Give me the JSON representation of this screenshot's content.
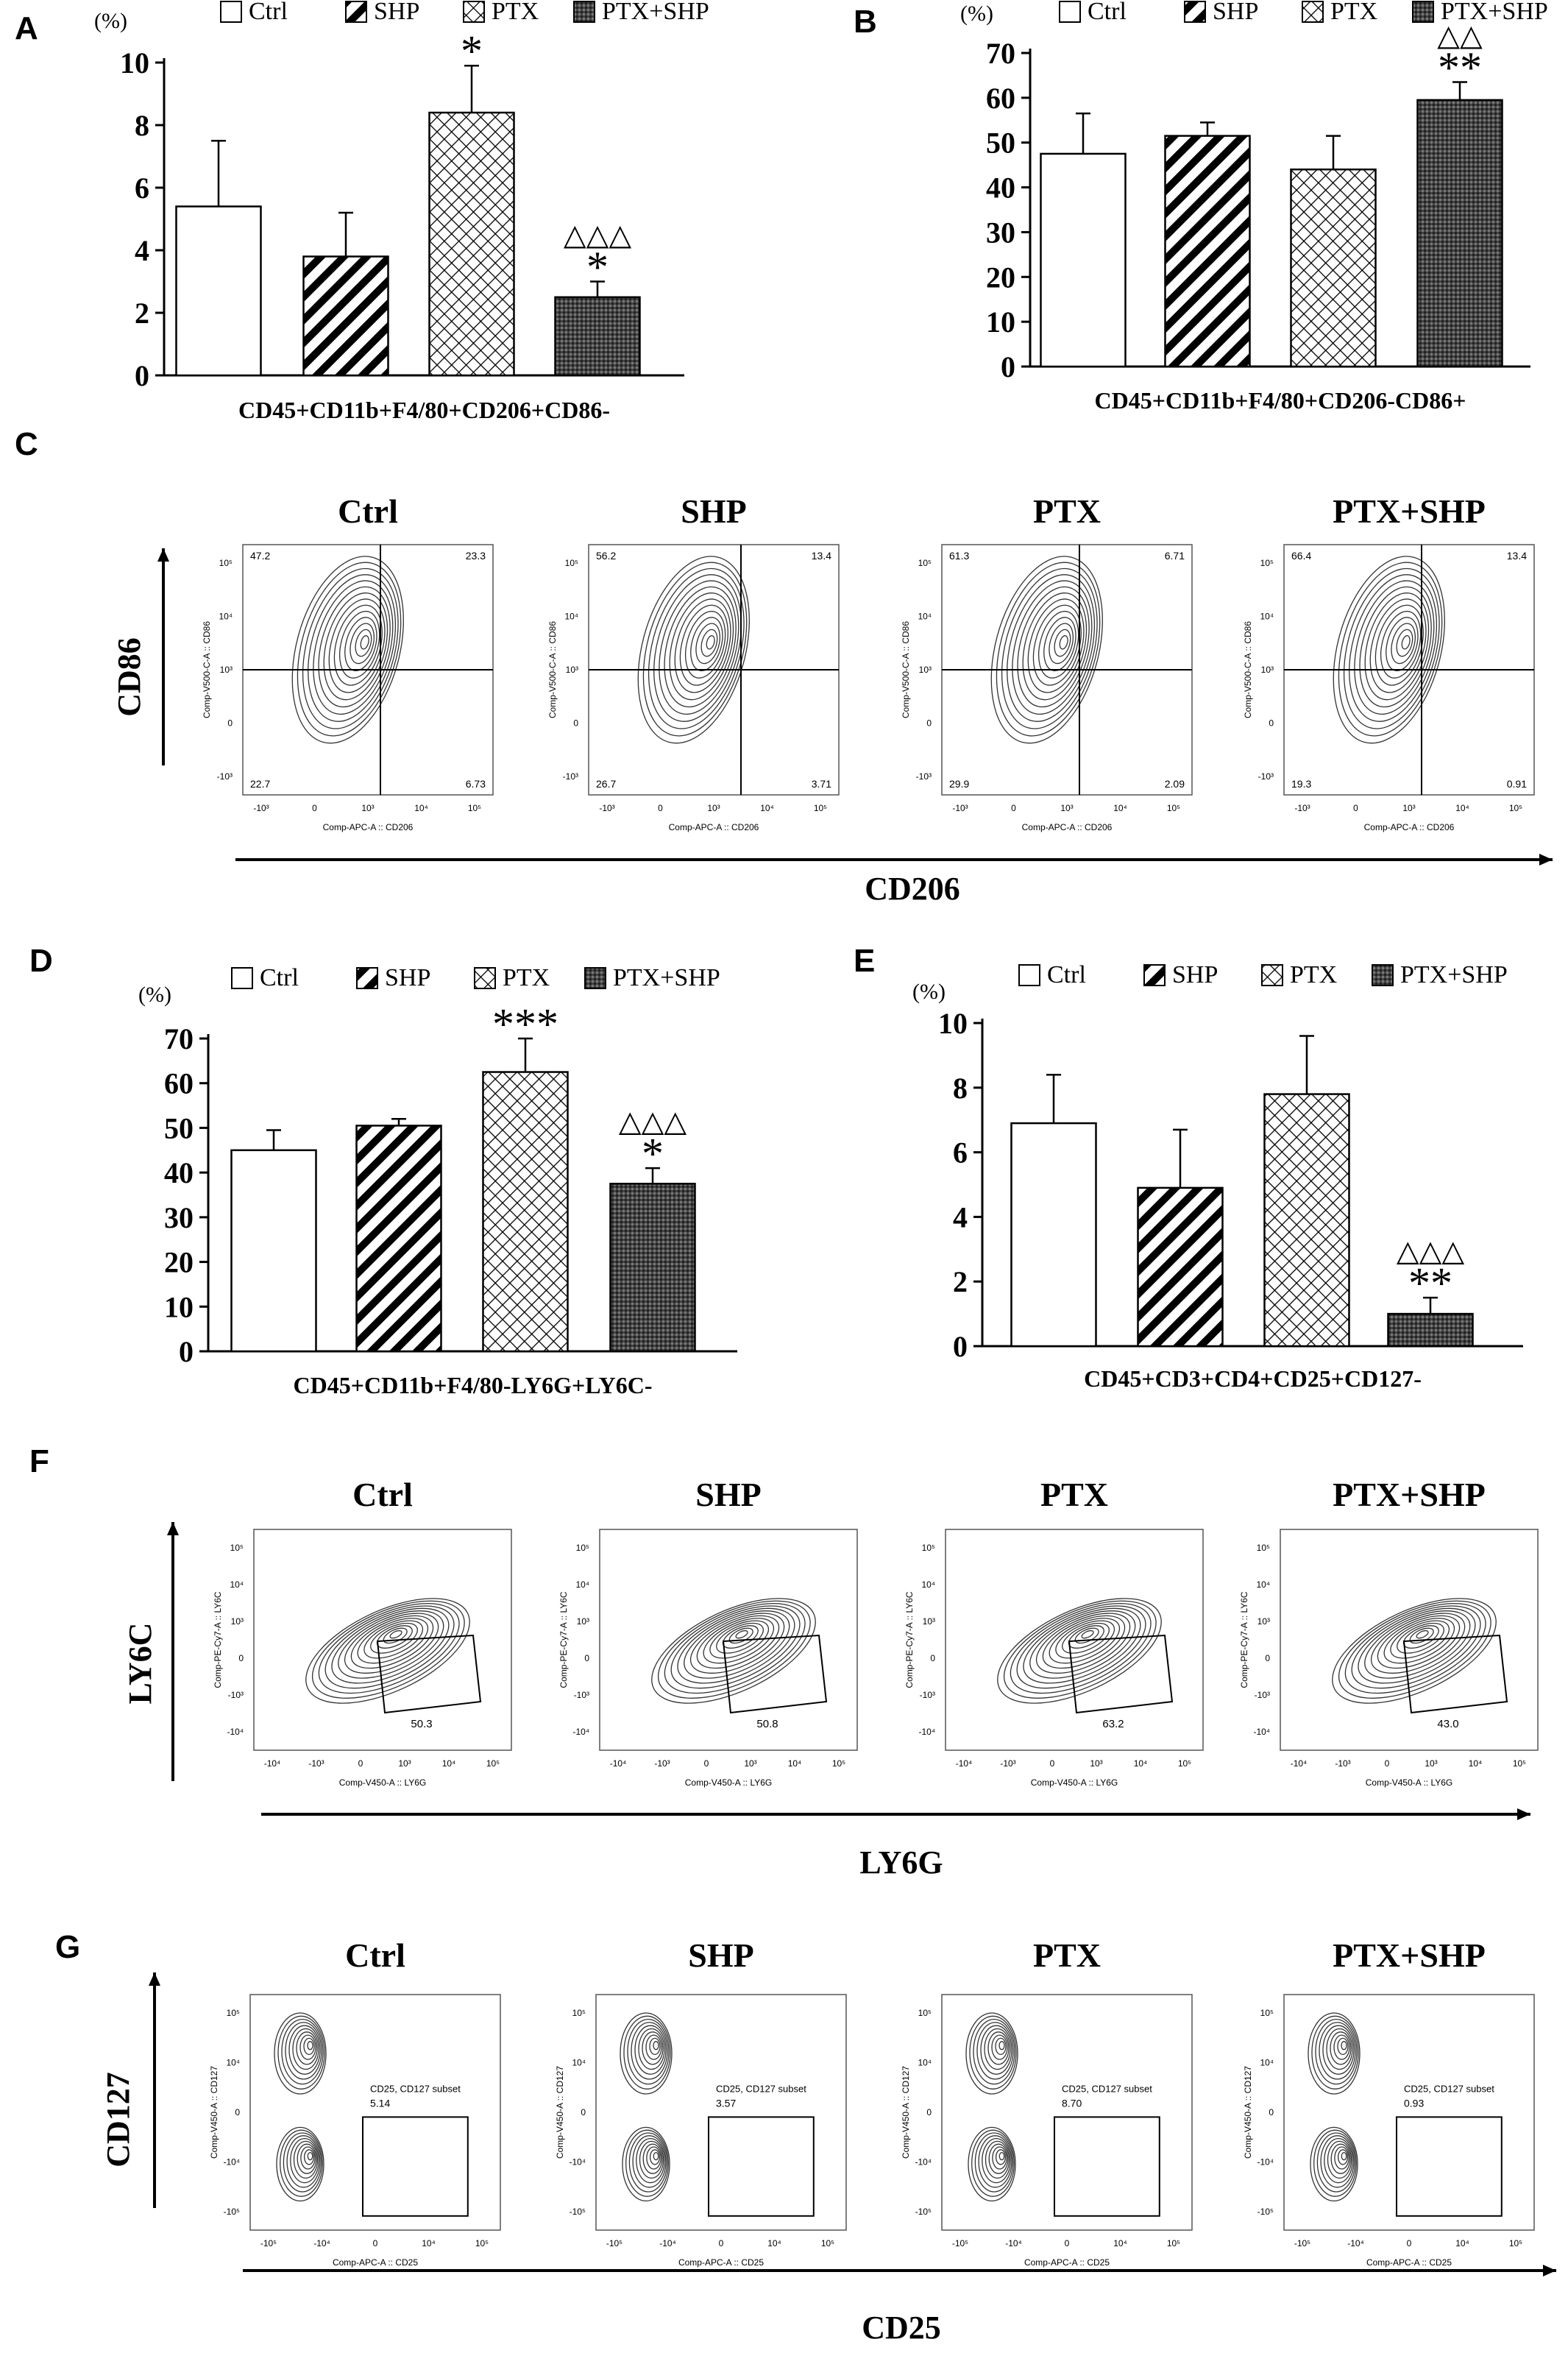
{
  "legend": [
    "Ctrl",
    "SHP",
    "PTX",
    "PTX+SHP"
  ],
  "palette": {
    "ink": "#000000",
    "contour": "#333333",
    "bg": "#ffffff",
    "crosshatch_fill": "#444444"
  },
  "chart_data": [
    {
      "panel": "A",
      "type": "bar",
      "categories": [
        "Ctrl",
        "SHP",
        "PTX",
        "PTX+SHP"
      ],
      "values": [
        5.4,
        3.8,
        8.4,
        2.5
      ],
      "errors": [
        2.1,
        1.4,
        1.5,
        0.5
      ],
      "annotations": [
        [
          "",
          ""
        ],
        [
          "",
          ""
        ],
        [
          "",
          "*"
        ],
        [
          "△△△",
          "*"
        ]
      ],
      "ylim": [
        0,
        10
      ],
      "yticks": [
        0,
        2,
        4,
        6,
        8,
        10
      ],
      "yunit": "(%)",
      "xlabel": "CD45+CD11b+F4/80+CD206+CD86-"
    },
    {
      "panel": "B",
      "type": "bar",
      "categories": [
        "Ctrl",
        "SHP",
        "PTX",
        "PTX+SHP"
      ],
      "values": [
        47.5,
        51.5,
        44,
        59.5
      ],
      "errors": [
        9,
        3,
        7.5,
        4
      ],
      "annotations": [
        [
          "",
          ""
        ],
        [
          "",
          ""
        ],
        [
          "",
          ""
        ],
        [
          "△△",
          "**"
        ]
      ],
      "ylim": [
        0,
        70
      ],
      "yticks": [
        0,
        10,
        20,
        30,
        40,
        50,
        60,
        70
      ],
      "yunit": "(%)",
      "xlabel": "CD45+CD11b+F4/80+CD206-CD86+"
    },
    {
      "panel": "D",
      "type": "bar",
      "categories": [
        "Ctrl",
        "SHP",
        "PTX",
        "PTX+SHP"
      ],
      "values": [
        45,
        50.5,
        62.5,
        37.5
      ],
      "errors": [
        4.5,
        1.5,
        7.5,
        3.5
      ],
      "annotations": [
        [
          "",
          ""
        ],
        [
          "",
          ""
        ],
        [
          "",
          "***"
        ],
        [
          "△△△",
          "*"
        ]
      ],
      "ylim": [
        0,
        70
      ],
      "yticks": [
        0,
        10,
        20,
        30,
        40,
        50,
        60,
        70
      ],
      "yunit": "(%)",
      "xlabel": "CD45+CD11b+F4/80-LY6G+LY6C-"
    },
    {
      "panel": "E",
      "type": "bar",
      "categories": [
        "Ctrl",
        "SHP",
        "PTX",
        "PTX+SHP"
      ],
      "values": [
        6.9,
        4.9,
        7.8,
        1.0
      ],
      "errors": [
        1.5,
        1.8,
        1.8,
        0.5
      ],
      "annotations": [
        [
          "",
          ""
        ],
        [
          "",
          ""
        ],
        [
          "",
          ""
        ],
        [
          "△△△",
          "**"
        ]
      ],
      "ylim": [
        0,
        10
      ],
      "yticks": [
        0,
        2,
        4,
        6,
        8,
        10
      ],
      "yunit": "(%)",
      "xlabel": "CD45+CD3+CD4+CD25+CD127-"
    }
  ],
  "flow_panels": [
    {
      "panel": "C",
      "y_axis": "CD86",
      "x_axis": "CD206",
      "y_param": "Comp-V500-C-A :: CD86",
      "x_param": "Comp-APC-A :: CD206",
      "plots": [
        {
          "title": "Ctrl",
          "q": [
            "47.2",
            "23.3",
            "22.7",
            "6.73"
          ]
        },
        {
          "title": "SHP",
          "q": [
            "56.2",
            "13.4",
            "26.7",
            "3.71"
          ]
        },
        {
          "title": "PTX",
          "q": [
            "61.3",
            "6.71",
            "29.9",
            "2.09"
          ]
        },
        {
          "title": "PTX+SHP",
          "q": [
            "66.4",
            "13.4",
            "19.3",
            "0.91"
          ]
        }
      ]
    },
    {
      "panel": "F",
      "y_axis": "LY6C",
      "x_axis": "LY6G",
      "y_param": "Comp-PE-Cy7-A :: LY6C",
      "x_param": "Comp-V450-A :: LY6G",
      "plots": [
        {
          "title": "Ctrl",
          "gate_value": "50.3"
        },
        {
          "title": "SHP",
          "gate_value": "50.8"
        },
        {
          "title": "PTX",
          "gate_value": "63.2"
        },
        {
          "title": "PTX+SHP",
          "gate_value": "43.0"
        }
      ]
    },
    {
      "panel": "G",
      "y_axis": "CD127",
      "x_axis": "CD25",
      "y_param": "Comp-V450-A :: CD127",
      "x_param": "Comp-APC-A :: CD25",
      "gate_label": "CD25, CD127 subset",
      "plots": [
        {
          "title": "Ctrl",
          "gate_value": "5.14"
        },
        {
          "title": "SHP",
          "gate_value": "3.57"
        },
        {
          "title": "PTX",
          "gate_value": "8.70"
        },
        {
          "title": "PTX+SHP",
          "gate_value": "0.93"
        }
      ]
    }
  ],
  "tick_labels": {
    "C": [
      "-10³",
      "0",
      "10³",
      "10⁴",
      "10⁵"
    ],
    "F": [
      "-10⁴",
      "-10³",
      "0",
      "10³",
      "10⁴",
      "10⁵"
    ],
    "G": [
      "-10⁵",
      "-10⁴",
      "0",
      "10⁴",
      "10⁵"
    ]
  }
}
